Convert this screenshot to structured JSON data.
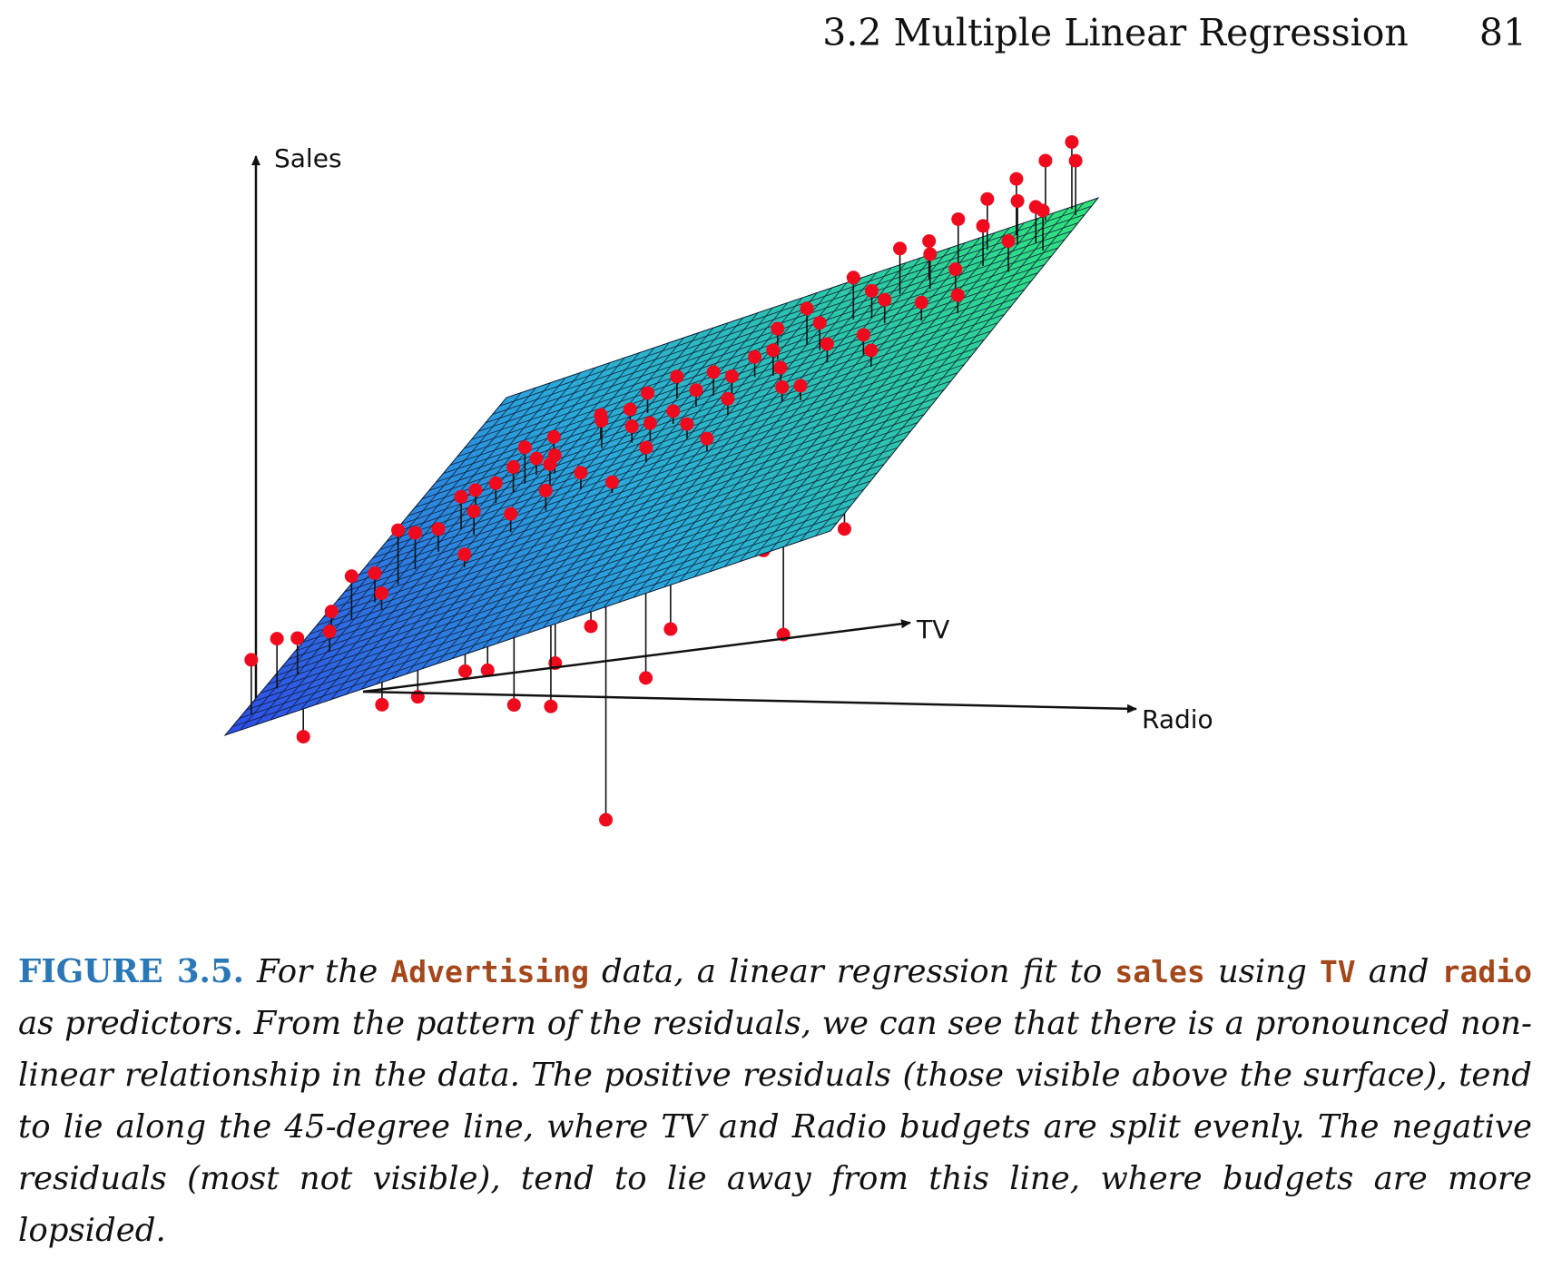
{
  "header": {
    "section_title": "3.2 Multiple Linear Regression",
    "page_number": "81"
  },
  "figure": {
    "axes": {
      "y_label": "Sales",
      "x_label": "TV",
      "z_label": "Radio"
    },
    "colors": {
      "surface_low": "#2f59e0",
      "surface_mid": "#2ab8d8",
      "surface_high": "#2fe07a",
      "mesh": "#0d1a33",
      "points": "#f00a1e"
    }
  },
  "chart_data": {
    "type": "scatter",
    "title": "",
    "xlabel": "TV",
    "ylabel": "Radio",
    "zlabel": "Sales",
    "surface": "plane",
    "note": "3D scatter with fitted regression plane; red points with vertical residual segments",
    "points_shown": "approx. 200 observations (Advertising data)"
  },
  "caption": {
    "label": "FIGURE 3.5.",
    "t1": " For the ",
    "c1": "Advertising",
    "t2": " data, a linear regression fit to ",
    "c2": "sales",
    "t3": " using ",
    "c3": "TV",
    "t4": " and ",
    "c4": "radio",
    "t5": " as predictors. From the pattern of the residuals, we can see that there is a pronounced non-linear relationship in the data. The positive residuals (those visible above the surface), tend to lie along the 45-degree line, where TV and Radio budgets are split evenly. The negative residuals (most not visible), tend to lie away from this line, where budgets are more lopsided."
  }
}
